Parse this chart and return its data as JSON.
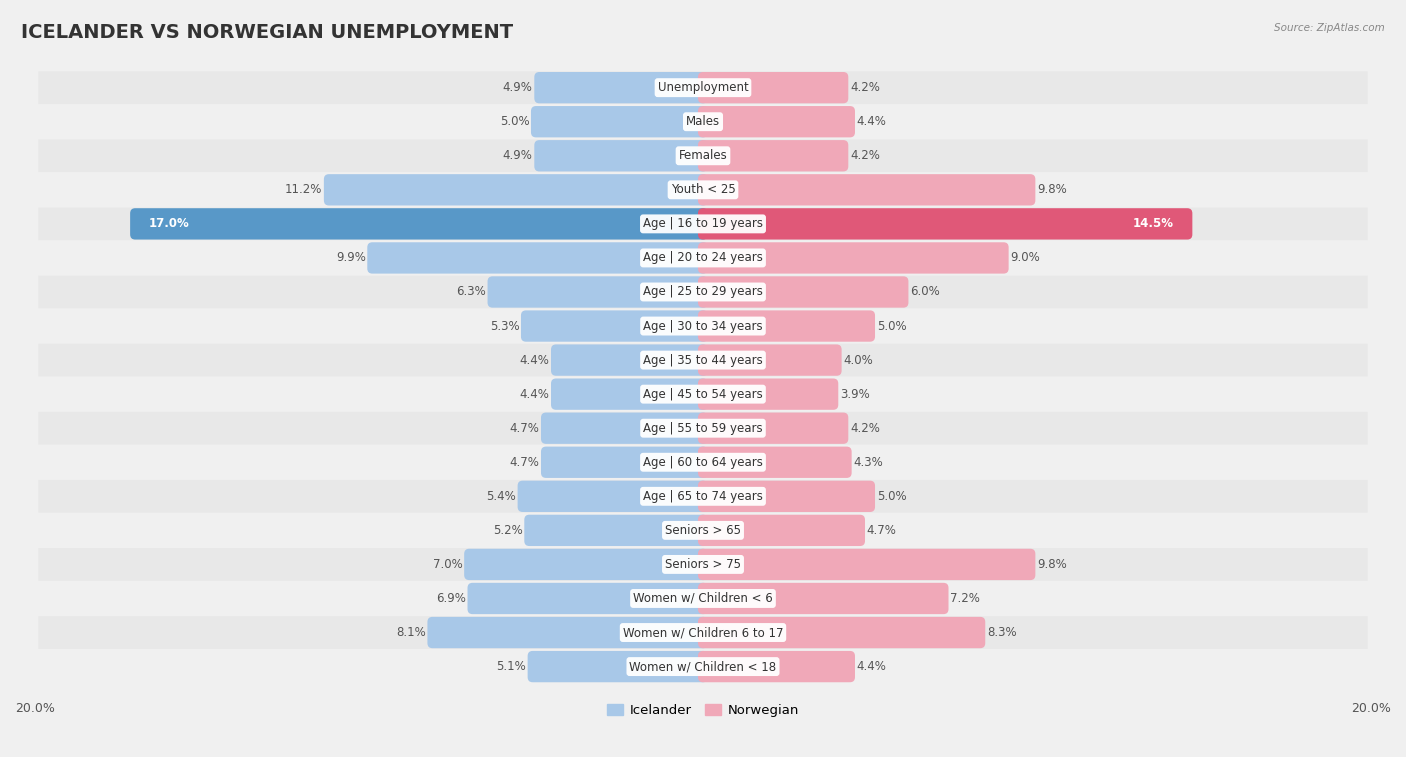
{
  "title": "ICELANDER VS NORWEGIAN UNEMPLOYMENT",
  "source": "Source: ZipAtlas.com",
  "categories": [
    "Unemployment",
    "Males",
    "Females",
    "Youth < 25",
    "Age | 16 to 19 years",
    "Age | 20 to 24 years",
    "Age | 25 to 29 years",
    "Age | 30 to 34 years",
    "Age | 35 to 44 years",
    "Age | 45 to 54 years",
    "Age | 55 to 59 years",
    "Age | 60 to 64 years",
    "Age | 65 to 74 years",
    "Seniors > 65",
    "Seniors > 75",
    "Women w/ Children < 6",
    "Women w/ Children 6 to 17",
    "Women w/ Children < 18"
  ],
  "icelander": [
    4.9,
    5.0,
    4.9,
    11.2,
    17.0,
    9.9,
    6.3,
    5.3,
    4.4,
    4.4,
    4.7,
    4.7,
    5.4,
    5.2,
    7.0,
    6.9,
    8.1,
    5.1
  ],
  "norwegian": [
    4.2,
    4.4,
    4.2,
    9.8,
    14.5,
    9.0,
    6.0,
    5.0,
    4.0,
    3.9,
    4.2,
    4.3,
    5.0,
    4.7,
    9.8,
    7.2,
    8.3,
    4.4
  ],
  "icelander_color": "#a8c8e8",
  "norwegian_color": "#f0a8b8",
  "highlight_icelander_color": "#5898c8",
  "highlight_norwegian_color": "#e05878",
  "axis_max": 20.0,
  "background_color": "#f0f0f0",
  "row_color_even": "#e8e8e8",
  "row_color_odd": "#f0f0f0",
  "title_fontsize": 14,
  "label_fontsize": 8.5,
  "value_fontsize": 8.5,
  "legend_fontsize": 9.5
}
